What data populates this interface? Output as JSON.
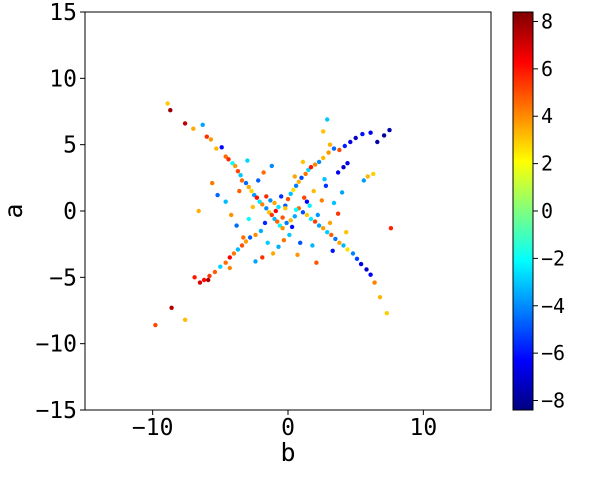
{
  "chart_data": {
    "type": "scatter",
    "xlabel": "b",
    "ylabel": "a",
    "xlim": [
      -15,
      15
    ],
    "ylim": [
      -15,
      15
    ],
    "xticks": [
      -10,
      0,
      10
    ],
    "yticks": [
      -15,
      -10,
      -5,
      0,
      5,
      10,
      15
    ],
    "grid": false,
    "legend": "none",
    "colormap": "jet",
    "colorbar": {
      "range": [
        -8.4,
        8.4
      ],
      "ticks": [
        -8,
        -6,
        -4,
        -2,
        0,
        2,
        4,
        6,
        8
      ]
    },
    "colormap_stops": [
      "#00007f",
      "#0000ff",
      "#007fff",
      "#00ffff",
      "#7fff7f",
      "#ffff00",
      "#ff7f00",
      "#ff0000",
      "#7f0000"
    ],
    "points": [
      [
        -8.9,
        8.1,
        3.0
      ],
      [
        -8.7,
        7.6,
        8.0
      ],
      [
        -7.6,
        6.6,
        7.4
      ],
      [
        -7.0,
        6.2,
        3.5
      ],
      [
        -6.3,
        6.5,
        -3.6
      ],
      [
        -6.0,
        5.6,
        5.5
      ],
      [
        -5.7,
        5.4,
        3.8
      ],
      [
        -5.3,
        4.7,
        3.2
      ],
      [
        -4.9,
        4.8,
        -6.2
      ],
      [
        -4.6,
        4.1,
        4.5
      ],
      [
        -4.4,
        3.9,
        5.7
      ],
      [
        -4.1,
        3.6,
        -2.0
      ],
      [
        -3.9,
        3.4,
        3.8
      ],
      [
        -3.7,
        3.0,
        5.2
      ],
      [
        -3.5,
        2.7,
        -3.0
      ],
      [
        -3.4,
        2.3,
        4.6
      ],
      [
        -3.1,
        2.1,
        -4.5
      ],
      [
        -2.9,
        1.8,
        3.5
      ],
      [
        -2.7,
        1.5,
        2.8
      ],
      [
        -2.5,
        1.2,
        -3.8
      ],
      [
        -2.3,
        1.0,
        6.1
      ],
      [
        -2.1,
        0.7,
        -2.5
      ],
      [
        -1.9,
        0.5,
        4.2
      ],
      [
        -1.6,
        0.2,
        -4.0
      ],
      [
        -1.4,
        -0.1,
        3.1
      ],
      [
        -1.2,
        -0.3,
        5.4
      ],
      [
        -1.0,
        -0.6,
        -3.3
      ],
      [
        -0.8,
        -0.8,
        4.7
      ],
      [
        -0.6,
        -1.1,
        -2.2
      ],
      [
        -0.4,
        -1.3,
        3.9
      ],
      [
        -0.2,
        0.4,
        -4.8
      ],
      [
        0.0,
        0.9,
        5.0
      ],
      [
        0.2,
        1.3,
        -3.1
      ],
      [
        0.4,
        1.6,
        2.6
      ],
      [
        0.6,
        1.9,
        -4.2
      ],
      [
        0.8,
        2.2,
        3.4
      ],
      [
        1.0,
        2.5,
        -5.1
      ],
      [
        1.3,
        2.8,
        4.4
      ],
      [
        1.5,
        3.1,
        -2.7
      ],
      [
        1.7,
        3.3,
        6.0
      ],
      [
        2.0,
        3.5,
        4.1
      ],
      [
        2.3,
        3.7,
        -4.0
      ],
      [
        2.6,
        4.0,
        3.3
      ],
      [
        3.0,
        4.4,
        3.8
      ],
      [
        3.4,
        4.7,
        -4.6
      ],
      [
        3.8,
        4.6,
        5.1
      ],
      [
        4.2,
        4.9,
        -5.8
      ],
      [
        4.6,
        5.2,
        -6.8
      ],
      [
        5.0,
        5.5,
        -7.2
      ],
      [
        5.5,
        5.8,
        -6.0
      ],
      [
        2.9,
        6.9,
        -3.0
      ],
      [
        2.6,
        6.0,
        3.1
      ],
      [
        3.1,
        5.0,
        3.4
      ],
      [
        3.7,
        2.9,
        -6.5
      ],
      [
        4.1,
        3.3,
        -7.0
      ],
      [
        4.4,
        3.6,
        -6.6
      ],
      [
        6.1,
        5.9,
        -6.5
      ],
      [
        6.6,
        5.2,
        -7.7
      ],
      [
        7.1,
        5.7,
        -8.0
      ],
      [
        7.5,
        6.1,
        -7.5
      ],
      [
        5.6,
        2.3,
        -3.7
      ],
      [
        5.9,
        2.6,
        3.3
      ],
      [
        6.3,
        2.8,
        2.9
      ],
      [
        7.6,
        -1.3,
        5.8
      ],
      [
        7.3,
        -7.7,
        2.9
      ],
      [
        6.8,
        -6.5,
        3.3
      ],
      [
        6.4,
        -5.4,
        4.2
      ],
      [
        6.1,
        -4.8,
        -6.4
      ],
      [
        5.8,
        -4.4,
        -7.1
      ],
      [
        5.4,
        -4.0,
        -6.7
      ],
      [
        5.1,
        -3.6,
        -5.2
      ],
      [
        4.8,
        -3.2,
        -4.1
      ],
      [
        4.4,
        -2.9,
        2.6
      ],
      [
        4.1,
        -2.6,
        -3.3
      ],
      [
        3.8,
        -2.4,
        3.6
      ],
      [
        3.5,
        -2.1,
        -4.4
      ],
      [
        3.2,
        -1.8,
        4.8
      ],
      [
        2.9,
        -1.6,
        -2.9
      ],
      [
        2.6,
        -1.3,
        3.7
      ],
      [
        2.3,
        -1.1,
        -3.6
      ],
      [
        2.0,
        -0.8,
        5.3
      ],
      [
        1.7,
        -0.6,
        -2.4
      ],
      [
        1.4,
        -0.3,
        3.0
      ],
      [
        1.1,
        -0.1,
        -5.0
      ],
      [
        0.8,
        0.2,
        4.6
      ],
      [
        0.5,
        -0.4,
        -3.5
      ],
      [
        0.2,
        -0.7,
        3.3
      ],
      [
        -0.1,
        -0.9,
        -4.3
      ],
      [
        -0.4,
        -0.5,
        4.9
      ],
      [
        -0.7,
        0.3,
        -2.6
      ],
      [
        -1.0,
        0.6,
        3.6
      ],
      [
        -1.3,
        0.8,
        -3.9
      ],
      [
        -1.6,
        1.1,
        5.6
      ],
      [
        -2.0,
        -1.5,
        -3.4
      ],
      [
        -2.4,
        -1.8,
        4.0
      ],
      [
        -2.8,
        -2.0,
        -4.7
      ],
      [
        -3.1,
        -2.3,
        3.7
      ],
      [
        -3.4,
        -2.6,
        5.0
      ],
      [
        -3.7,
        -2.9,
        -3.2
      ],
      [
        -4.0,
        -3.2,
        4.3
      ],
      [
        -4.3,
        -3.5,
        6.3
      ],
      [
        -4.6,
        -3.9,
        4.5
      ],
      [
        -5.0,
        -4.2,
        -2.8
      ],
      [
        -5.4,
        -4.6,
        4.8
      ],
      [
        -5.8,
        -4.9,
        5.4
      ],
      [
        -6.2,
        -5.2,
        6.2
      ],
      [
        -6.5,
        -5.4,
        6.9
      ],
      [
        -6.9,
        -5.0,
        5.9
      ],
      [
        -5.9,
        -5.2,
        7.6
      ],
      [
        -4.3,
        -4.3,
        4.1
      ],
      [
        -9.8,
        -8.6,
        5.1
      ],
      [
        -8.6,
        -7.3,
        7.6
      ],
      [
        -7.6,
        -8.2,
        3.2
      ],
      [
        -6.6,
        0.0,
        3.4
      ],
      [
        -5.6,
        2.1,
        4.3
      ],
      [
        -5.2,
        1.2,
        -4.6
      ],
      [
        -4.6,
        0.7,
        -3.2
      ],
      [
        -4.2,
        -0.3,
        3.9
      ],
      [
        -3.8,
        -1.1,
        -4.5
      ],
      [
        -3.3,
        -2.0,
        4.5
      ],
      [
        -2.9,
        -0.6,
        -2.1
      ],
      [
        -2.6,
        0.3,
        3.2
      ],
      [
        -2.2,
        2.3,
        -4.7
      ],
      [
        -1.8,
        2.9,
        4.5
      ],
      [
        -1.5,
        -2.4,
        -2.9
      ],
      [
        -1.1,
        -3.2,
        3.5
      ],
      [
        -0.7,
        -2.7,
        -3.4
      ],
      [
        -0.3,
        -2.2,
        4.4
      ],
      [
        0.1,
        -1.8,
        -3.0
      ],
      [
        0.5,
        2.6,
        3.6
      ],
      [
        0.9,
        -2.4,
        -4.9
      ],
      [
        1.2,
        1.0,
        5.2
      ],
      [
        1.6,
        0.4,
        -2.3
      ],
      [
        1.9,
        1.5,
        3.2
      ],
      [
        2.2,
        -0.3,
        -3.8
      ],
      [
        2.5,
        0.8,
        4.2
      ],
      [
        2.8,
        1.9,
        -5.4
      ],
      [
        3.1,
        -0.9,
        3.6
      ],
      [
        3.4,
        0.6,
        -3.1
      ],
      [
        3.7,
        -0.2,
        5.4
      ],
      [
        4.0,
        1.4,
        -3.6
      ],
      [
        4.3,
        -1.6,
        3.1
      ],
      [
        -0.5,
        1.1,
        -5.6
      ],
      [
        0.3,
        -1.2,
        -6.1
      ],
      [
        -1.7,
        -0.9,
        -5.7
      ],
      [
        1.4,
        0.7,
        -6.3
      ],
      [
        -0.9,
        0.0,
        6.4
      ],
      [
        0.6,
        0.1,
        -2.1
      ],
      [
        -0.2,
        0.2,
        3.0
      ],
      [
        1.8,
        -2.6,
        -3.3
      ],
      [
        -2.4,
        -3.8,
        -3.6
      ],
      [
        -3.6,
        1.5,
        4.7
      ],
      [
        2.7,
        2.4,
        -3.1
      ],
      [
        1.1,
        3.7,
        3.1
      ],
      [
        -1.2,
        3.4,
        -4.0
      ],
      [
        0.7,
        -3.3,
        3.8
      ],
      [
        -1.9,
        -3.5,
        5.5
      ],
      [
        3.3,
        -3.0,
        -6.0
      ],
      [
        -3.0,
        3.8,
        -2.8
      ],
      [
        2.1,
        -3.9,
        4.9
      ]
    ]
  }
}
